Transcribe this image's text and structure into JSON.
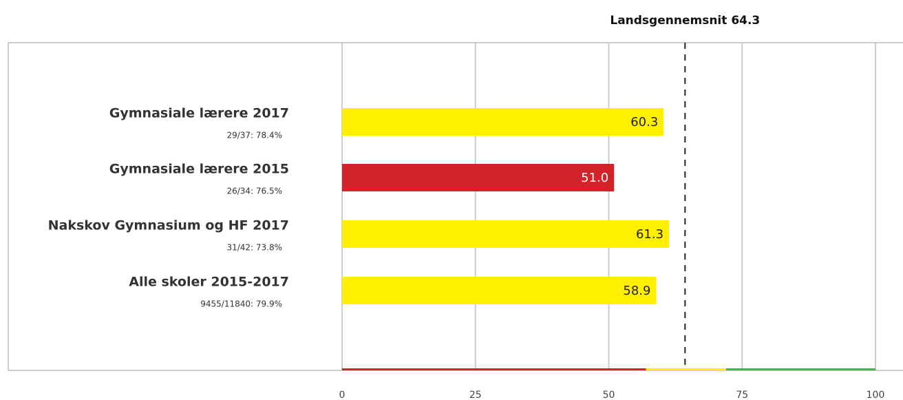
{
  "chart_data": {
    "type": "hbar",
    "reference": {
      "label": "Landsgennemsnit",
      "value": 64.3
    },
    "categories": [
      "Gymnasiale lærere 2017",
      "Gymnasiale lærere 2015",
      "Nakskov Gymnasium og HF 2017",
      "Alle skoler 2015-2017"
    ],
    "sublabels": [
      "29/37: 78.4%",
      "26/34: 76.5%",
      "31/42: 73.8%",
      "9455/11840: 79.9%"
    ],
    "values": [
      60.3,
      51.0,
      61.3,
      58.9
    ],
    "value_labels": [
      "60.3",
      "51.0",
      "61.3",
      "58.9"
    ],
    "colors": [
      "#fff000",
      "#d2232a",
      "#fff000",
      "#fff000"
    ],
    "xlim": [
      0,
      100
    ],
    "xticks": [
      0,
      25,
      50,
      75,
      100
    ],
    "grid": true,
    "bands": [
      {
        "from": 0,
        "to": 57,
        "color": "#d2232a"
      },
      {
        "from": 57,
        "to": 72,
        "color": "#fff000"
      },
      {
        "from": 72,
        "to": 100,
        "color": "#4caf50"
      }
    ]
  }
}
